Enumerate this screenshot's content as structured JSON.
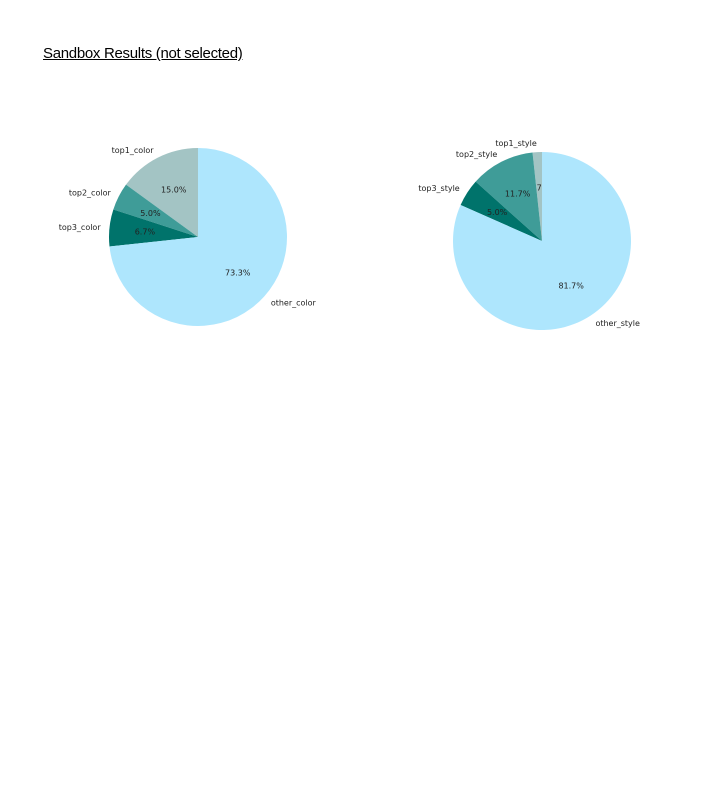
{
  "page": {
    "title": "Sandbox Results (not selected)"
  },
  "chart_data": [
    {
      "type": "pie",
      "title": "",
      "labels": [
        "top1_color",
        "top2_color",
        "top3_color",
        "other_color"
      ],
      "values": [
        15.0,
        5.0,
        6.7,
        73.3
      ],
      "value_labels": [
        "15.0%",
        "5.0%",
        "6.7%",
        "73.3%"
      ],
      "colors": [
        "#a3c4c4",
        "#3f9c98",
        "#00736b",
        "#aee6fd"
      ],
      "start_angle_deg": 90,
      "direction": "counterclockwise"
    },
    {
      "type": "pie",
      "title": "",
      "labels": [
        "top1_style",
        "top2_style",
        "top3_style",
        "other_style"
      ],
      "values": [
        1.7,
        11.7,
        5.0,
        81.7
      ],
      "value_labels": [
        "1.7%",
        "11.7%",
        "5.0%",
        "81.7%"
      ],
      "colors": [
        "#a3c4c4",
        "#3f9c98",
        "#00736b",
        "#aee6fd"
      ],
      "start_angle_deg": 90,
      "direction": "counterclockwise"
    }
  ]
}
